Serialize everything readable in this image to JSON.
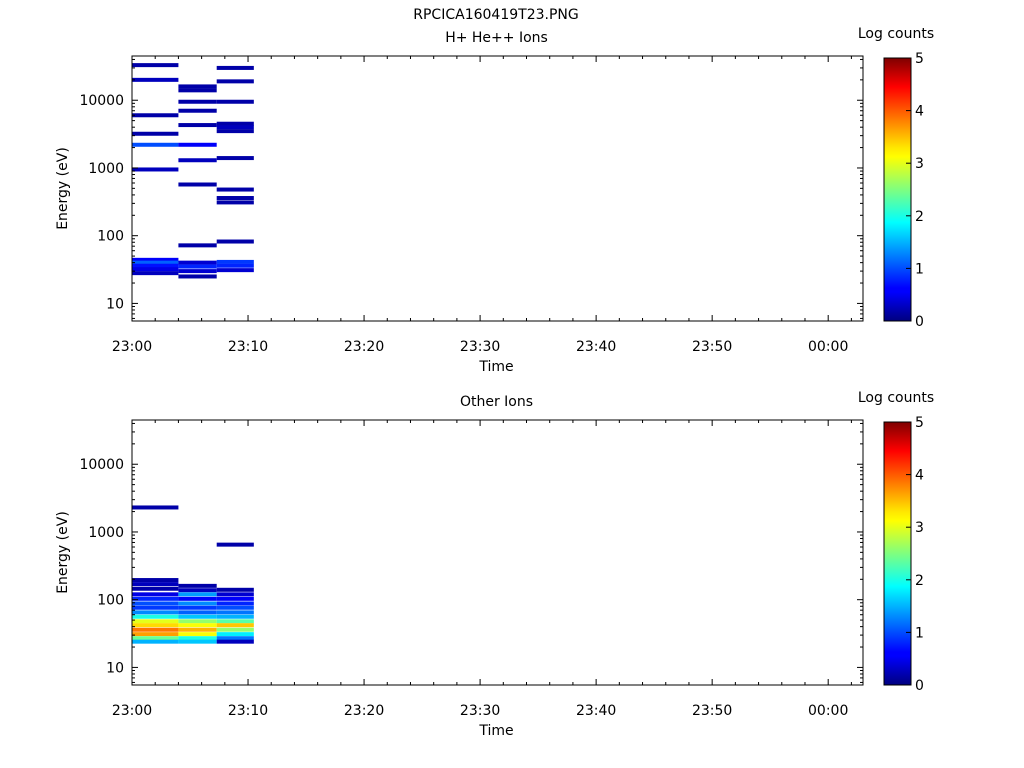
{
  "figure_title": "RPCICA160419T23.PNG",
  "colors": {
    "background": "#ffffff",
    "axes": "#000000",
    "colormap": "jet"
  },
  "chart_data": [
    {
      "type": "heatmap",
      "title": "H+ He++ Ions",
      "xlabel": "Time",
      "ylabel": "Energy (eV)",
      "x_ticks": [
        "23:00",
        "23:10",
        "23:20",
        "23:30",
        "23:40",
        "23:50",
        "00:00"
      ],
      "y_ticks": [
        "10",
        "100",
        "1000",
        "10000"
      ],
      "y_scale": "log",
      "ylim": [
        5.5,
        45000
      ],
      "xlim_minutes": [
        0,
        63
      ],
      "colorbar": {
        "label": "Log counts",
        "range": [
          0,
          5
        ],
        "ticks": [
          "0",
          "1",
          "2",
          "3",
          "4",
          "5"
        ]
      },
      "cells": [
        {
          "t0": 0,
          "t1": 4,
          "e": 33000,
          "v": 0.2
        },
        {
          "t0": 0,
          "t1": 4,
          "e": 20000,
          "v": 0.3
        },
        {
          "t0": 0,
          "t1": 4,
          "e": 6000,
          "v": 0.2
        },
        {
          "t0": 0,
          "t1": 4,
          "e": 3200,
          "v": 0.2
        },
        {
          "t0": 0,
          "t1": 4,
          "e": 2200,
          "v": 1.0
        },
        {
          "t0": 0,
          "t1": 4,
          "e": 950,
          "v": 0.3
        },
        {
          "t0": 0,
          "t1": 4,
          "e": 44,
          "v": 0.6
        },
        {
          "t0": 0,
          "t1": 4,
          "e": 40,
          "v": 1.1
        },
        {
          "t0": 0,
          "t1": 4,
          "e": 36,
          "v": 0.7
        },
        {
          "t0": 0,
          "t1": 4,
          "e": 32,
          "v": 0.5
        },
        {
          "t0": 0,
          "t1": 4,
          "e": 28,
          "v": 0.3
        },
        {
          "t0": 4,
          "t1": 7.3,
          "e": 16000,
          "v": 0.2
        },
        {
          "t0": 4,
          "t1": 7.3,
          "e": 14000,
          "v": 0.2
        },
        {
          "t0": 4,
          "t1": 7.3,
          "e": 9500,
          "v": 0.2
        },
        {
          "t0": 4,
          "t1": 7.3,
          "e": 7000,
          "v": 0.2
        },
        {
          "t0": 4,
          "t1": 7.3,
          "e": 4300,
          "v": 0.2
        },
        {
          "t0": 4,
          "t1": 7.3,
          "e": 2200,
          "v": 0.6
        },
        {
          "t0": 4,
          "t1": 7.3,
          "e": 1300,
          "v": 0.3
        },
        {
          "t0": 4,
          "t1": 7.3,
          "e": 570,
          "v": 0.2
        },
        {
          "t0": 4,
          "t1": 7.3,
          "e": 72,
          "v": 0.2
        },
        {
          "t0": 4,
          "t1": 7.3,
          "e": 40,
          "v": 0.4
        },
        {
          "t0": 4,
          "t1": 7.3,
          "e": 35,
          "v": 0.8
        },
        {
          "t0": 4,
          "t1": 7.3,
          "e": 30,
          "v": 0.4
        },
        {
          "t0": 4,
          "t1": 7.3,
          "e": 25,
          "v": 0.2
        },
        {
          "t0": 7.3,
          "t1": 10.5,
          "e": 30000,
          "v": 0.2
        },
        {
          "t0": 7.3,
          "t1": 10.5,
          "e": 19000,
          "v": 0.2
        },
        {
          "t0": 7.3,
          "t1": 10.5,
          "e": 9500,
          "v": 0.2
        },
        {
          "t0": 7.3,
          "t1": 10.5,
          "e": 4500,
          "v": 0.2
        },
        {
          "t0": 7.3,
          "t1": 10.5,
          "e": 4000,
          "v": 0.3
        },
        {
          "t0": 7.3,
          "t1": 10.5,
          "e": 3500,
          "v": 0.2
        },
        {
          "t0": 7.3,
          "t1": 10.5,
          "e": 1400,
          "v": 0.2
        },
        {
          "t0": 7.3,
          "t1": 10.5,
          "e": 480,
          "v": 0.2
        },
        {
          "t0": 7.3,
          "t1": 10.5,
          "e": 360,
          "v": 0.2
        },
        {
          "t0": 7.3,
          "t1": 10.5,
          "e": 310,
          "v": 0.2
        },
        {
          "t0": 7.3,
          "t1": 10.5,
          "e": 82,
          "v": 0.2
        },
        {
          "t0": 7.3,
          "t1": 10.5,
          "e": 41,
          "v": 0.9
        },
        {
          "t0": 7.3,
          "t1": 10.5,
          "e": 36,
          "v": 0.8
        },
        {
          "t0": 7.3,
          "t1": 10.5,
          "e": 31,
          "v": 0.4
        }
      ]
    },
    {
      "type": "heatmap",
      "title": "Other Ions",
      "xlabel": "Time",
      "ylabel": "Energy (eV)",
      "x_ticks": [
        "23:00",
        "23:10",
        "23:20",
        "23:30",
        "23:40",
        "23:50",
        "00:00"
      ],
      "y_ticks": [
        "10",
        "100",
        "1000",
        "10000"
      ],
      "y_scale": "log",
      "ylim": [
        5.5,
        45000
      ],
      "xlim_minutes": [
        0,
        63
      ],
      "colorbar": {
        "label": "Log counts",
        "range": [
          0,
          5
        ],
        "ticks": [
          "0",
          "1",
          "2",
          "3",
          "4",
          "5"
        ]
      },
      "cells": [
        {
          "t0": 0,
          "t1": 4,
          "e": 2300,
          "v": 0.2
        },
        {
          "t0": 0,
          "t1": 4,
          "e": 195,
          "v": 0.2
        },
        {
          "t0": 0,
          "t1": 4,
          "e": 170,
          "v": 0.3
        },
        {
          "t0": 0,
          "t1": 4,
          "e": 145,
          "v": 0.2
        },
        {
          "t0": 0,
          "t1": 4,
          "e": 120,
          "v": 0.5
        },
        {
          "t0": 0,
          "t1": 4,
          "e": 103,
          "v": 0.8
        },
        {
          "t0": 0,
          "t1": 4,
          "e": 88,
          "v": 1.0
        },
        {
          "t0": 0,
          "t1": 4,
          "e": 76,
          "v": 0.9
        },
        {
          "t0": 0,
          "t1": 4,
          "e": 65,
          "v": 1.3
        },
        {
          "t0": 0,
          "t1": 4,
          "e": 56,
          "v": 2.0
        },
        {
          "t0": 0,
          "t1": 4,
          "e": 48,
          "v": 3.0
        },
        {
          "t0": 0,
          "t1": 4,
          "e": 42,
          "v": 3.3
        },
        {
          "t0": 0,
          "t1": 4,
          "e": 36,
          "v": 3.8
        },
        {
          "t0": 0,
          "t1": 4,
          "e": 31,
          "v": 3.6
        },
        {
          "t0": 0,
          "t1": 4,
          "e": 27,
          "v": 2.4
        },
        {
          "t0": 0,
          "t1": 4,
          "e": 24,
          "v": 1.5
        },
        {
          "t0": 4,
          "t1": 7.3,
          "e": 160,
          "v": 0.2
        },
        {
          "t0": 4,
          "t1": 7.3,
          "e": 138,
          "v": 0.3
        },
        {
          "t0": 4,
          "t1": 7.3,
          "e": 120,
          "v": 1.4
        },
        {
          "t0": 4,
          "t1": 7.3,
          "e": 103,
          "v": 0.6
        },
        {
          "t0": 4,
          "t1": 7.3,
          "e": 88,
          "v": 1.3
        },
        {
          "t0": 4,
          "t1": 7.3,
          "e": 76,
          "v": 0.9
        },
        {
          "t0": 4,
          "t1": 7.3,
          "e": 65,
          "v": 1.1
        },
        {
          "t0": 4,
          "t1": 7.3,
          "e": 56,
          "v": 1.6
        },
        {
          "t0": 4,
          "t1": 7.3,
          "e": 48,
          "v": 2.6
        },
        {
          "t0": 4,
          "t1": 7.3,
          "e": 42,
          "v": 3.1
        },
        {
          "t0": 4,
          "t1": 7.3,
          "e": 36,
          "v": 3.5
        },
        {
          "t0": 4,
          "t1": 7.3,
          "e": 31,
          "v": 3.1
        },
        {
          "t0": 4,
          "t1": 7.3,
          "e": 27,
          "v": 2.0
        },
        {
          "t0": 4,
          "t1": 7.3,
          "e": 24,
          "v": 1.6
        },
        {
          "t0": 7.3,
          "t1": 10.5,
          "e": 650,
          "v": 0.2
        },
        {
          "t0": 7.3,
          "t1": 10.5,
          "e": 140,
          "v": 0.2
        },
        {
          "t0": 7.3,
          "t1": 10.5,
          "e": 120,
          "v": 0.4
        },
        {
          "t0": 7.3,
          "t1": 10.5,
          "e": 103,
          "v": 0.6
        },
        {
          "t0": 7.3,
          "t1": 10.5,
          "e": 88,
          "v": 0.8
        },
        {
          "t0": 7.3,
          "t1": 10.5,
          "e": 76,
          "v": 1.0
        },
        {
          "t0": 7.3,
          "t1": 10.5,
          "e": 65,
          "v": 1.2
        },
        {
          "t0": 7.3,
          "t1": 10.5,
          "e": 56,
          "v": 1.5
        },
        {
          "t0": 7.3,
          "t1": 10.5,
          "e": 48,
          "v": 2.3
        },
        {
          "t0": 7.3,
          "t1": 10.5,
          "e": 42,
          "v": 3.4
        },
        {
          "t0": 7.3,
          "t1": 10.5,
          "e": 36,
          "v": 2.6
        },
        {
          "t0": 7.3,
          "t1": 10.5,
          "e": 31,
          "v": 1.8
        },
        {
          "t0": 7.3,
          "t1": 10.5,
          "e": 27,
          "v": 1.2
        },
        {
          "t0": 7.3,
          "t1": 10.5,
          "e": 24,
          "v": 0.3
        }
      ]
    }
  ]
}
